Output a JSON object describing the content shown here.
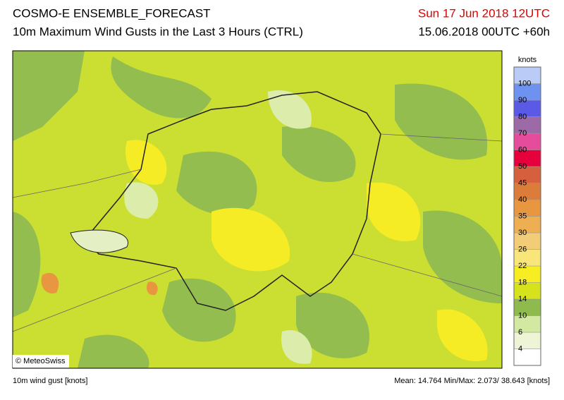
{
  "header": {
    "title": "COSMO-E ENSEMBLE_FORECAST",
    "subtitle": "10m Maximum Wind Gusts in the Last 3 Hours (CTRL)",
    "valid_time": "Sun 17 Jun 2018 12UTC",
    "run": "15.06.2018 00UTC +60h"
  },
  "map": {
    "copyright": "© MeteoSwiss"
  },
  "legend": {
    "unit": "knots",
    "levels": [
      "4",
      "6",
      "10",
      "14",
      "18",
      "22",
      "26",
      "30",
      "35",
      "40",
      "45",
      "50",
      "60",
      "70",
      "80",
      "90",
      "100"
    ],
    "colors": [
      "#ffffff",
      "#eef5d6",
      "#d3e8a0",
      "#8fbb4e",
      "#d6e21c",
      "#f6ee22",
      "#f9e67a",
      "#f3cc78",
      "#eeae52",
      "#e8963f",
      "#dc7c3a",
      "#d6603e",
      "#e6003c",
      "#e64c9c",
      "#9c6aa6",
      "#5a5ae6",
      "#6e92f0",
      "#b9cbf6"
    ]
  },
  "footer": {
    "variable": "10m wind gust [knots]",
    "stats": "Mean: 14.764 Min/Max: 2.073/ 38.643 [knots]"
  }
}
